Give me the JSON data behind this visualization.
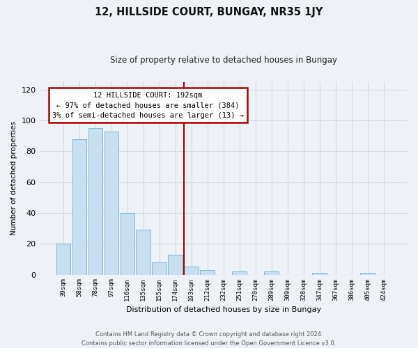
{
  "title": "12, HILLSIDE COURT, BUNGAY, NR35 1JY",
  "subtitle": "Size of property relative to detached houses in Bungay",
  "xlabel": "Distribution of detached houses by size in Bungay",
  "ylabel": "Number of detached properties",
  "bar_labels": [
    "39sqm",
    "58sqm",
    "78sqm",
    "97sqm",
    "116sqm",
    "135sqm",
    "155sqm",
    "174sqm",
    "193sqm",
    "212sqm",
    "232sqm",
    "251sqm",
    "270sqm",
    "289sqm",
    "309sqm",
    "328sqm",
    "347sqm",
    "367sqm",
    "386sqm",
    "405sqm",
    "424sqm"
  ],
  "bar_values": [
    20,
    88,
    95,
    93,
    40,
    29,
    8,
    13,
    5,
    3,
    0,
    2,
    0,
    2,
    0,
    0,
    1,
    0,
    0,
    1,
    0
  ],
  "bar_color": "#c8dff0",
  "bar_edge_color": "#7ab8d9",
  "vline_index": 8,
  "vline_color": "#aa0000",
  "annotation_title": "12 HILLSIDE COURT: 192sqm",
  "annotation_line1": "← 97% of detached houses are smaller (384)",
  "annotation_line2": "3% of semi-detached houses are larger (13) →",
  "annotation_box_edge": "#aa0000",
  "footer_line1": "Contains HM Land Registry data © Crown copyright and database right 2024.",
  "footer_line2": "Contains public sector information licensed under the Open Government Licence v3.0.",
  "ylim": [
    0,
    125
  ],
  "yticks": [
    0,
    20,
    40,
    60,
    80,
    100,
    120
  ],
  "grid_color": "#d0d8e4",
  "background_color": "#eef2f7"
}
